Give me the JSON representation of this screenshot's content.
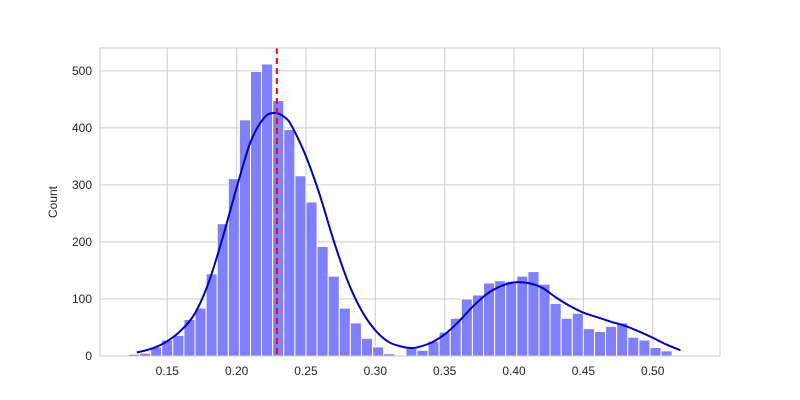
{
  "chart_data": {
    "type": "bar",
    "title": "",
    "xlabel": "",
    "ylabel": "Count",
    "xlim": [
      0.1015,
      0.5485
    ],
    "ylim": [
      0,
      540
    ],
    "xticks": [
      0.15,
      0.2,
      0.25,
      0.3,
      0.35,
      0.4,
      0.45,
      0.5
    ],
    "xtick_labels": [
      "0.15",
      "0.20",
      "0.25",
      "0.30",
      "0.35",
      "0.40",
      "0.45",
      "0.50"
    ],
    "yticks": [
      0,
      100,
      200,
      300,
      400,
      500
    ],
    "ytick_labels": [
      "0",
      "100",
      "200",
      "300",
      "400",
      "500"
    ],
    "grid": true,
    "bin_start": 0.122,
    "bin_width": 0.008,
    "counts": [
      3,
      5,
      16,
      28,
      36,
      64,
      84,
      144,
      232,
      311,
      414,
      499,
      512,
      448,
      397,
      316,
      270,
      192,
      140,
      84,
      58,
      31,
      16,
      4,
      0,
      13,
      10,
      26,
      42,
      66,
      100,
      107,
      128,
      132,
      131,
      140,
      148,
      126,
      92,
      66,
      75,
      48,
      43,
      52,
      58,
      33,
      28,
      15,
      9
    ],
    "kde": {
      "x": [
        0.128,
        0.14,
        0.15,
        0.16,
        0.17,
        0.18,
        0.19,
        0.2,
        0.21,
        0.22,
        0.228,
        0.235,
        0.24,
        0.25,
        0.26,
        0.27,
        0.28,
        0.29,
        0.3,
        0.31,
        0.32,
        0.325,
        0.33,
        0.34,
        0.35,
        0.36,
        0.37,
        0.38,
        0.39,
        0.4,
        0.41,
        0.42,
        0.43,
        0.44,
        0.45,
        0.46,
        0.47,
        0.48,
        0.49,
        0.5,
        0.51,
        0.52
      ],
      "y": [
        6,
        14,
        26,
        45,
        75,
        130,
        208,
        295,
        375,
        418,
        426,
        418,
        402,
        350,
        282,
        202,
        132,
        80,
        45,
        24,
        16,
        14,
        15,
        23,
        38,
        60,
        86,
        108,
        122,
        129,
        128,
        120,
        103,
        88,
        76,
        68,
        60,
        53,
        43,
        32,
        20,
        10
      ]
    },
    "vline": {
      "x": 0.229,
      "color": "#ff0000",
      "style": "dashed"
    },
    "colors": {
      "bars": "#8080ff",
      "bar_edge": "#ffffff",
      "kde": "#0000cc",
      "grid": "#cccccc"
    }
  }
}
